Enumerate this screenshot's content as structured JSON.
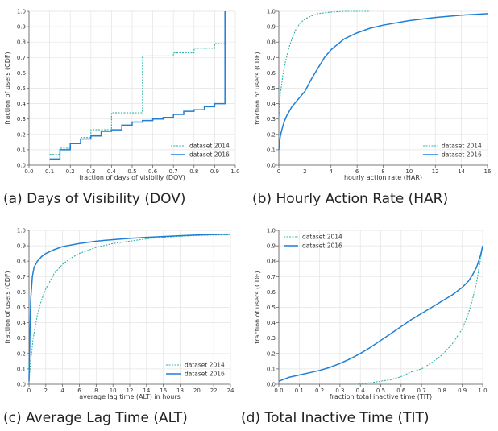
{
  "colors": {
    "series_2014": "#2cb5a8",
    "series_2016": "#1f7fd4",
    "grid": "#e3e3e3",
    "axis": "#555555"
  },
  "chart_data": [
    {
      "type": "line",
      "caption": "(a) Days of Visibility (DOV)",
      "xlabel": "fraction of days of visibiliy (DOV)",
      "ylabel": "fraction of users (CDF)",
      "xlim": [
        0,
        1
      ],
      "ylim": [
        0,
        1
      ],
      "xticks": [
        0,
        0.1,
        0.2,
        0.3,
        0.4,
        0.5,
        0.6,
        0.7,
        0.8,
        0.9,
        1
      ],
      "xtick_labels": [
        "0.0",
        "0.1",
        "0.2",
        "0.3",
        "0.4",
        "0.5",
        "0.6",
        "0.7",
        "0.8",
        "0.9",
        "1.0"
      ],
      "yticks": [
        0,
        0.1,
        0.2,
        0.3,
        0.4,
        0.5,
        0.6,
        0.7,
        0.8,
        0.9,
        1
      ],
      "ytick_labels": [
        "0.0",
        "0.1",
        "0.2",
        "0.3",
        "0.4",
        "0.5",
        "0.6",
        "0.7",
        "0.8",
        "0.9",
        "1.0"
      ],
      "grid": true,
      "legend_position": "bottom-right",
      "series": [
        {
          "name": "dataset 2014",
          "style": "dashed",
          "step": true,
          "x": [
            0.1,
            0.15,
            0.2,
            0.25,
            0.3,
            0.35,
            0.4,
            0.55,
            0.7,
            0.8,
            0.9,
            0.95,
            0.95
          ],
          "y": [
            0.07,
            0.11,
            0.14,
            0.18,
            0.23,
            0.23,
            0.34,
            0.71,
            0.73,
            0.76,
            0.79,
            0.79,
            1.0
          ]
        },
        {
          "name": "dataset 2016",
          "style": "solid",
          "step": true,
          "x": [
            0.1,
            0.15,
            0.2,
            0.25,
            0.3,
            0.35,
            0.4,
            0.45,
            0.5,
            0.55,
            0.6,
            0.65,
            0.7,
            0.75,
            0.8,
            0.85,
            0.9,
            0.95,
            0.95
          ],
          "y": [
            0.04,
            0.1,
            0.14,
            0.17,
            0.19,
            0.22,
            0.23,
            0.26,
            0.28,
            0.29,
            0.3,
            0.31,
            0.33,
            0.35,
            0.36,
            0.38,
            0.4,
            0.45,
            1.0
          ]
        }
      ]
    },
    {
      "type": "line",
      "caption": "(b) Hourly Action Rate (HAR)",
      "xlabel": "hourly action rate (HAR)",
      "ylabel": "fraction of users (CDF)",
      "xlim": [
        0,
        16
      ],
      "ylim": [
        0,
        1
      ],
      "xticks": [
        0,
        2,
        4,
        6,
        8,
        10,
        12,
        14,
        16
      ],
      "xtick_labels": [
        "0",
        "2",
        "4",
        "6",
        "8",
        "10",
        "12",
        "14",
        "16"
      ],
      "yticks": [
        0,
        0.1,
        0.2,
        0.3,
        0.4,
        0.5,
        0.6,
        0.7,
        0.8,
        0.9,
        1
      ],
      "ytick_labels": [
        "0.0",
        "0.1",
        "0.2",
        "0.3",
        "0.4",
        "0.5",
        "0.6",
        "0.7",
        "0.8",
        "0.9",
        "1.0"
      ],
      "grid": true,
      "legend_position": "bottom-right",
      "series": [
        {
          "name": "dataset 2014",
          "style": "dashed",
          "x": [
            0,
            0.1,
            0.3,
            0.5,
            0.8,
            1.0,
            1.3,
            1.6,
            2.0,
            2.5,
            3.0,
            4.0,
            5.0,
            6.0,
            7.0
          ],
          "y": [
            0.3,
            0.45,
            0.58,
            0.67,
            0.77,
            0.82,
            0.88,
            0.92,
            0.95,
            0.97,
            0.985,
            0.995,
            1.0,
            1.0,
            1.0
          ]
        },
        {
          "name": "dataset 2016",
          "style": "solid",
          "x": [
            0,
            0.1,
            0.2,
            0.4,
            0.6,
            0.8,
            1.0,
            1.5,
            2.0,
            2.5,
            3.0,
            3.5,
            4.0,
            5.0,
            6.0,
            7.0,
            8.0,
            10.0,
            12.0,
            14.0,
            16.0
          ],
          "y": [
            0.1,
            0.18,
            0.22,
            0.28,
            0.32,
            0.35,
            0.38,
            0.43,
            0.48,
            0.56,
            0.63,
            0.7,
            0.75,
            0.82,
            0.86,
            0.89,
            0.91,
            0.94,
            0.96,
            0.975,
            0.985
          ]
        }
      ]
    },
    {
      "type": "line",
      "caption": "(c) Average Lag Time (ALT)",
      "xlabel": "average lag time (ALT) in hours",
      "ylabel": "fraction of users (CDF)",
      "xlim": [
        0,
        24
      ],
      "ylim": [
        0,
        1
      ],
      "xticks": [
        0,
        2,
        4,
        6,
        8,
        10,
        12,
        14,
        16,
        18,
        20,
        22,
        24
      ],
      "xtick_labels": [
        "0",
        "2",
        "4",
        "6",
        "8",
        "10",
        "12",
        "14",
        "16",
        "18",
        "20",
        "22",
        "24"
      ],
      "yticks": [
        0,
        0.1,
        0.2,
        0.3,
        0.4,
        0.5,
        0.6,
        0.7,
        0.8,
        0.9,
        1
      ],
      "ytick_labels": [
        "0.0",
        "0.1",
        "0.2",
        "0.3",
        "0.4",
        "0.5",
        "0.6",
        "0.7",
        "0.8",
        "0.9",
        "1.0"
      ],
      "grid": true,
      "legend_position": "bottom-right",
      "series": [
        {
          "name": "dataset 2014",
          "style": "dashed",
          "x": [
            0,
            0.2,
            0.5,
            1.0,
            1.5,
            2.0,
            3.0,
            4.0,
            5.0,
            6.0,
            8.0,
            10.0,
            12.0,
            14.0,
            16.0,
            18.0,
            20.0,
            22.0,
            24.0
          ],
          "y": [
            0.02,
            0.15,
            0.3,
            0.45,
            0.55,
            0.62,
            0.72,
            0.78,
            0.82,
            0.85,
            0.89,
            0.915,
            0.93,
            0.945,
            0.955,
            0.962,
            0.967,
            0.97,
            0.972
          ]
        },
        {
          "name": "dataset 2016",
          "style": "solid",
          "x": [
            0,
            0.1,
            0.2,
            0.4,
            0.6,
            1.0,
            1.5,
            2.0,
            3.0,
            4.0,
            6.0,
            8.0,
            10.0,
            12.0,
            14.0,
            16.0,
            18.0,
            20.0,
            22.0,
            24.0
          ],
          "y": [
            0.02,
            0.3,
            0.55,
            0.7,
            0.76,
            0.8,
            0.83,
            0.85,
            0.875,
            0.895,
            0.915,
            0.93,
            0.94,
            0.948,
            0.955,
            0.96,
            0.965,
            0.97,
            0.973,
            0.976
          ]
        }
      ]
    },
    {
      "type": "line",
      "caption": "(d) Total Inactive Time (TIT)",
      "xlabel": "fraction total inactive time (TIT)",
      "ylabel": "fraction of users (CDF)",
      "xlim": [
        0,
        1
      ],
      "ylim": [
        0,
        1
      ],
      "xticks": [
        0,
        0.1,
        0.2,
        0.3,
        0.4,
        0.5,
        0.6,
        0.7,
        0.8,
        0.9,
        1
      ],
      "xtick_labels": [
        "0.0",
        "0.1",
        "0.2",
        "0.3",
        "0.4",
        "0.5",
        "0.6",
        "0.7",
        "0.8",
        "0.9",
        "1.0"
      ],
      "yticks": [
        0,
        0.1,
        0.2,
        0.3,
        0.4,
        0.5,
        0.6,
        0.7,
        0.8,
        0.9,
        1
      ],
      "ytick_labels": [
        "0.0",
        "0.1",
        "0.2",
        "0.3",
        "0.4",
        "0.5",
        "0.6",
        "0.7",
        "0.8",
        "0.9",
        "1.0"
      ],
      "grid": true,
      "legend_position": "top-left",
      "series": [
        {
          "name": "dataset 2014",
          "style": "dashed",
          "x": [
            0.38,
            0.45,
            0.5,
            0.55,
            0.6,
            0.65,
            0.7,
            0.75,
            0.8,
            0.85,
            0.9,
            0.93,
            0.95,
            0.97,
            0.98,
            0.99,
            1.0
          ],
          "y": [
            0.0,
            0.01,
            0.02,
            0.03,
            0.05,
            0.08,
            0.1,
            0.14,
            0.19,
            0.26,
            0.36,
            0.46,
            0.55,
            0.66,
            0.74,
            0.82,
            0.9
          ]
        },
        {
          "name": "dataset 2016",
          "style": "solid",
          "x": [
            0,
            0.02,
            0.05,
            0.1,
            0.15,
            0.2,
            0.25,
            0.3,
            0.35,
            0.4,
            0.45,
            0.5,
            0.55,
            0.6,
            0.65,
            0.7,
            0.75,
            0.8,
            0.85,
            0.9,
            0.93,
            0.95,
            0.97,
            0.99,
            1.0
          ],
          "y": [
            0.02,
            0.03,
            0.045,
            0.06,
            0.075,
            0.09,
            0.11,
            0.135,
            0.165,
            0.2,
            0.24,
            0.285,
            0.33,
            0.375,
            0.42,
            0.46,
            0.5,
            0.54,
            0.58,
            0.63,
            0.67,
            0.71,
            0.76,
            0.84,
            0.9
          ]
        }
      ]
    }
  ]
}
